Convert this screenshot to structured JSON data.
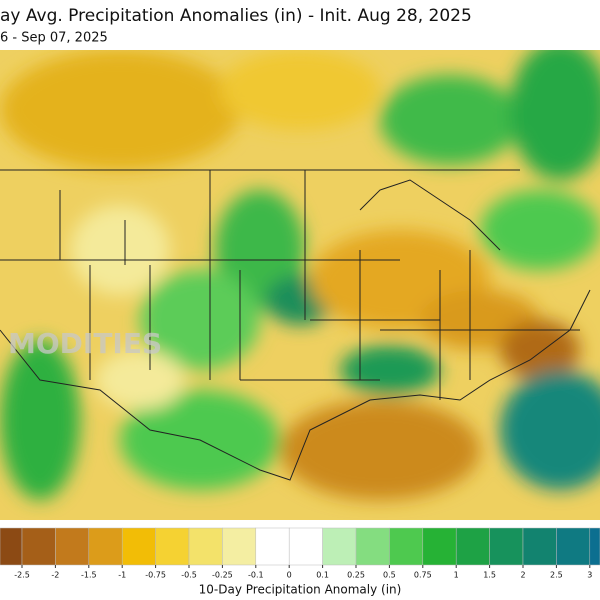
{
  "header": {
    "title": "ay Avg. Precipitation Anomalies (in) - Init. Aug 28, 2025",
    "subtitle": "6 - Sep 07, 2025"
  },
  "watermark": "MODITIES",
  "colorbar": {
    "label": "10-Day Precipitation Anomaly (in)",
    "ticks": [
      -2.5,
      -2,
      -1.5,
      -1,
      -0.75,
      -0.5,
      -0.25,
      -0.1,
      0,
      0.1,
      0.25,
      0.5,
      0.75,
      1,
      1.5,
      2,
      2.5,
      3
    ],
    "colors": [
      "#8c4a14",
      "#a55f18",
      "#c27a1c",
      "#dc9c1a",
      "#f2bd06",
      "#f5d232",
      "#f3e26a",
      "#f4eea2",
      "#ffffff",
      "#ffffff",
      "#bdefb6",
      "#84dd80",
      "#4ec94f",
      "#26b235",
      "#1ea245",
      "#17925c",
      "#12836f",
      "#0f7a82",
      "#0c6f90"
    ]
  }
}
